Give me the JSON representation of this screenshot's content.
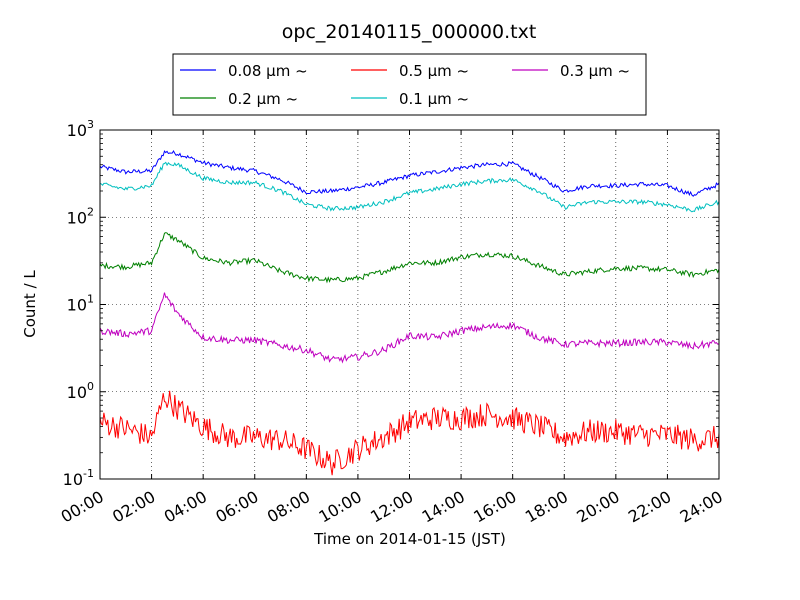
{
  "chart_data": {
    "type": "line",
    "title": "opc_20140115_000000.txt",
    "xlabel": "Time on 2014-01-15 (JST)",
    "ylabel": "Count / L",
    "yscale": "log",
    "xlim": [
      "00:00",
      "24:00"
    ],
    "ylim": [
      0.1,
      1000
    ],
    "grid": true,
    "legend_position": "top",
    "x_ticks": [
      "00:00",
      "02:00",
      "04:00",
      "06:00",
      "08:00",
      "10:00",
      "12:00",
      "14:00",
      "16:00",
      "18:00",
      "20:00",
      "22:00",
      "24:00"
    ],
    "y_ticks": [
      {
        "value": 0.1,
        "base": "10",
        "exp": "-1"
      },
      {
        "value": 1,
        "base": "10",
        "exp": "0"
      },
      {
        "value": 10,
        "base": "10",
        "exp": "1"
      },
      {
        "value": 100,
        "base": "10",
        "exp": "2"
      },
      {
        "value": 1000,
        "base": "10",
        "exp": "3"
      }
    ],
    "x": [
      "00:00",
      "01:00",
      "02:00",
      "02:30",
      "03:00",
      "04:00",
      "05:00",
      "06:00",
      "07:00",
      "08:00",
      "09:00",
      "10:00",
      "11:00",
      "12:00",
      "13:00",
      "14:00",
      "15:00",
      "16:00",
      "17:00",
      "18:00",
      "19:00",
      "20:00",
      "21:00",
      "22:00",
      "23:00",
      "24:00"
    ],
    "series": [
      {
        "name": "0.08 μm ~",
        "color": "#0000ff",
        "noise": 0.025,
        "values": [
          380,
          330,
          340,
          560,
          540,
          420,
          370,
          340,
          270,
          195,
          200,
          220,
          250,
          300,
          330,
          370,
          400,
          410,
          290,
          200,
          230,
          230,
          240,
          230,
          180,
          240
        ]
      },
      {
        "name": "0.2 μm ~",
        "color": "#008000",
        "noise": 0.03,
        "values": [
          28,
          27,
          30,
          65,
          55,
          34,
          30,
          32,
          24,
          20,
          19,
          20,
          24,
          30,
          30,
          35,
          38,
          36,
          28,
          22,
          24,
          26,
          26,
          25,
          22,
          25
        ]
      },
      {
        "name": "0.5 μm ~",
        "color": "#ff0000",
        "noise": 0.14,
        "values": [
          0.45,
          0.38,
          0.3,
          0.9,
          0.65,
          0.4,
          0.3,
          0.3,
          0.28,
          0.22,
          0.15,
          0.22,
          0.3,
          0.45,
          0.5,
          0.5,
          0.55,
          0.5,
          0.4,
          0.3,
          0.35,
          0.35,
          0.32,
          0.32,
          0.28,
          0.3
        ]
      },
      {
        "name": "0.1 μm ~",
        "color": "#00bfbf",
        "noise": 0.025,
        "values": [
          240,
          210,
          230,
          420,
          400,
          280,
          250,
          250,
          200,
          140,
          125,
          130,
          150,
          190,
          210,
          240,
          260,
          270,
          200,
          130,
          150,
          150,
          150,
          140,
          120,
          150
        ]
      },
      {
        "name": "0.3 μm ~",
        "color": "#bf00bf",
        "noise": 0.04,
        "values": [
          5.0,
          4.6,
          5.0,
          13,
          8.0,
          4.2,
          3.9,
          3.9,
          3.4,
          3.0,
          2.3,
          2.5,
          3.0,
          4.4,
          4.2,
          5.0,
          5.5,
          5.8,
          4.2,
          3.5,
          3.6,
          3.6,
          3.7,
          3.7,
          3.3,
          3.7
        ]
      }
    ]
  }
}
